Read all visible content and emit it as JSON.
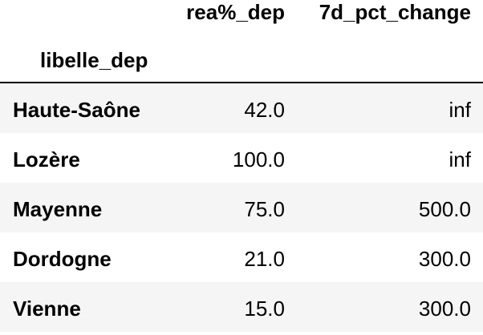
{
  "table": {
    "columns": {
      "rea": "rea%_dep",
      "pct": "7d_pct_change"
    },
    "index_name": "libelle_dep",
    "rows": [
      {
        "label": "Haute-Saône",
        "rea": "42.0",
        "pct": "inf"
      },
      {
        "label": "Lozère",
        "rea": "100.0",
        "pct": "inf"
      },
      {
        "label": "Mayenne",
        "rea": "75.0",
        "pct": "500.0"
      },
      {
        "label": "Dordogne",
        "rea": "21.0",
        "pct": "300.0"
      },
      {
        "label": "Vienne",
        "rea": "15.0",
        "pct": "300.0"
      }
    ]
  }
}
